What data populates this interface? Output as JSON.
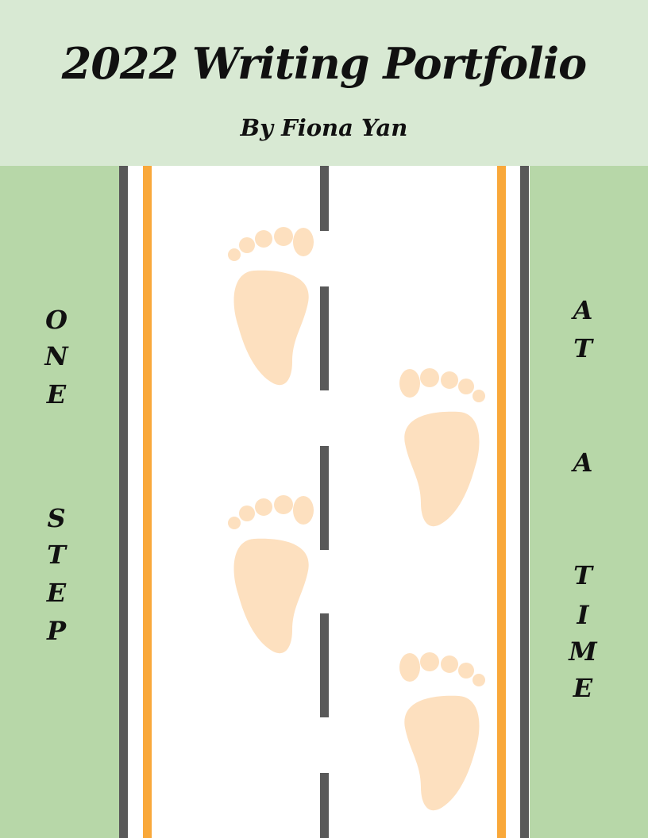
{
  "header": {
    "title": "2022 Writing Portfolio",
    "subtitle": "By Fiona Yan"
  },
  "left_text": {
    "words": [
      [
        "O",
        "N",
        "E"
      ],
      [
        "S",
        "T",
        "E",
        "P"
      ]
    ]
  },
  "right_text": {
    "words": [
      [
        "A",
        "T"
      ],
      [
        "A"
      ],
      [
        "T",
        "I",
        "M",
        "E"
      ]
    ]
  },
  "colors": {
    "header_bg": "#d8e9d3",
    "side_bg": "#b7d7a8",
    "road_line": "#595959",
    "lane_orange": "#f9a83a",
    "footprint": "#fde0bf"
  },
  "icons": [
    "footprint-icon",
    "footprint-icon",
    "footprint-icon",
    "footprint-icon"
  ]
}
